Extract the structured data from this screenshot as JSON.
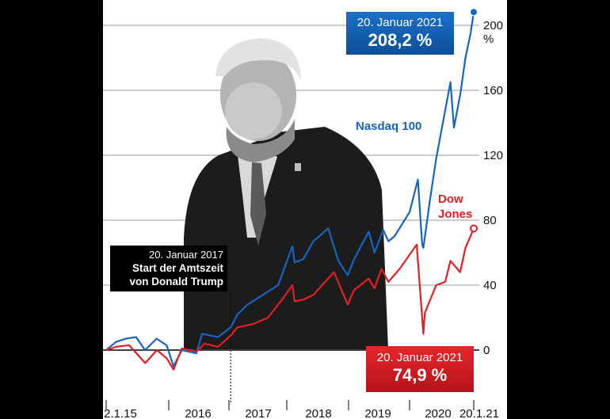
{
  "chart_data": {
    "type": "line",
    "y_unit": "%",
    "yticks": [
      0,
      40,
      80,
      120,
      160,
      200
    ],
    "ylim": [
      -12,
      214
    ],
    "x_tick_labels": [
      "2.1.15",
      "2016",
      "2017",
      "2018",
      "2019",
      "2020",
      "20.1.21"
    ],
    "x_range": [
      "2015-01-02",
      "2021-01-20"
    ],
    "grid": true,
    "series": [
      {
        "name": "Nasdaq 100",
        "color": "#1565c0",
        "x": [
          "2015-01-02",
          "2015-03-01",
          "2015-05-01",
          "2015-07-01",
          "2015-08-24",
          "2015-11-01",
          "2016-01-01",
          "2016-02-11",
          "2016-04-01",
          "2016-06-27",
          "2016-08-01",
          "2016-11-04",
          "2017-01-20",
          "2017-03-01",
          "2017-05-01",
          "2017-07-01",
          "2017-09-01",
          "2017-11-01",
          "2018-01-26",
          "2018-02-08",
          "2018-04-01",
          "2018-06-01",
          "2018-08-29",
          "2018-10-29",
          "2018-12-24",
          "2019-02-01",
          "2019-04-30",
          "2019-06-03",
          "2019-07-26",
          "2019-08-26",
          "2019-10-01",
          "2019-12-31",
          "2020-02-19",
          "2020-03-16",
          "2020-03-23",
          "2020-05-01",
          "2020-06-08",
          "2020-09-02",
          "2020-09-23",
          "2020-11-01",
          "2020-12-01",
          "2021-01-01",
          "2021-01-20"
        ],
        "values": [
          0,
          5,
          7,
          8,
          0,
          7,
          3,
          -10,
          0,
          -2,
          10,
          8,
          14,
          22,
          28,
          32,
          36,
          40,
          64,
          54,
          56,
          67,
          75,
          55,
          46,
          56,
          73,
          60,
          74,
          67,
          70,
          85,
          105,
          65,
          63,
          92,
          118,
          165,
          137,
          158,
          180,
          195,
          208.2
        ]
      },
      {
        "name": "Dow Jones",
        "color": "#e31e24",
        "x": [
          "2015-01-02",
          "2015-03-01",
          "2015-05-20",
          "2015-08-25",
          "2015-11-03",
          "2016-01-01",
          "2016-02-11",
          "2016-04-01",
          "2016-06-27",
          "2016-08-15",
          "2016-11-04",
          "2017-01-20",
          "2017-03-01",
          "2017-06-01",
          "2017-09-01",
          "2017-12-01",
          "2018-01-26",
          "2018-02-08",
          "2018-04-01",
          "2018-06-01",
          "2018-10-03",
          "2018-12-24",
          "2019-02-01",
          "2019-04-30",
          "2019-06-03",
          "2019-07-15",
          "2019-08-26",
          "2019-11-01",
          "2020-02-12",
          "2020-03-23",
          "2020-04-01",
          "2020-06-08",
          "2020-08-01",
          "2020-09-02",
          "2020-10-30",
          "2020-12-01",
          "2021-01-20"
        ],
        "values": [
          0,
          2,
          3,
          -8,
          0,
          -5,
          -12,
          1,
          -1,
          4,
          2,
          9,
          14,
          16,
          20,
          32,
          40,
          30,
          31,
          34,
          48,
          28,
          37,
          44,
          38,
          50,
          42,
          50,
          65,
          10,
          23,
          40,
          42,
          55,
          48,
          63,
          74.9
        ]
      }
    ]
  },
  "callouts": {
    "nasdaq": {
      "date": "20. Januar 2021",
      "value": "208,2 %"
    },
    "dow": {
      "date": "20. Januar 2021",
      "value": "74,9 %"
    }
  },
  "annotation": {
    "date": "20. Januar 2017",
    "line1": "Start der Amtszeit",
    "line2": "von Donald Trump",
    "x": "2017-01-20"
  }
}
